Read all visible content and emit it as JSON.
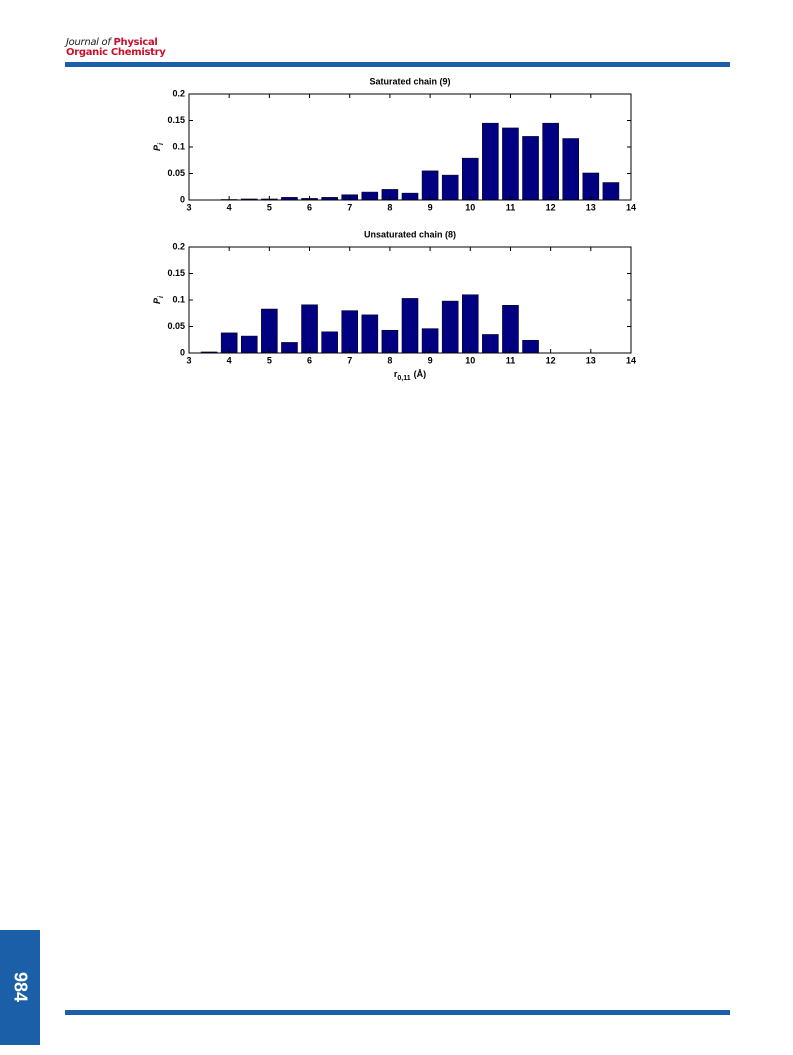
{
  "header": {
    "journal_prefix": "Journal of",
    "journal_highlight": "Physical",
    "journal_line2": "Organic Chemistry"
  },
  "page_number": "984",
  "chart_data": [
    {
      "type": "bar",
      "title": "Saturated chain (9)",
      "color": "#000080",
      "ylabel": "P",
      "ylabel_sub": "i",
      "x": [
        3.5,
        4,
        4.5,
        5,
        5.5,
        6,
        6.5,
        7,
        7.5,
        8,
        8.5,
        9,
        9.5,
        10,
        10.5,
        11,
        11.5,
        12,
        12.5,
        13,
        13.5
      ],
      "values": [
        0,
        0.001,
        0.002,
        0.002,
        0.005,
        0.003,
        0.005,
        0.01,
        0.015,
        0.02,
        0.013,
        0.055,
        0.047,
        0.079,
        0.145,
        0.136,
        0.12,
        0.145,
        0.116,
        0.051,
        0.033
      ],
      "xlim": [
        3,
        14
      ],
      "xticks": [
        3,
        4,
        5,
        6,
        7,
        8,
        9,
        10,
        11,
        12,
        13,
        14
      ],
      "ylim": [
        0,
        0.2
      ],
      "yticks": [
        0,
        0.05,
        0.1,
        0.15,
        0.2
      ]
    },
    {
      "type": "bar",
      "title": "Unsaturated chain (8)",
      "color": "#000080",
      "ylabel": "P",
      "ylabel_sub": "i",
      "xlabel": "r",
      "xlabel_sub": "0,11",
      "xlabel_unit": "(Å)",
      "x": [
        3.5,
        4,
        4.5,
        5,
        5.5,
        6,
        6.5,
        7,
        7.5,
        8,
        8.5,
        9,
        9.5,
        10,
        10.5,
        11,
        11.5,
        12,
        12.5,
        13,
        13.5
      ],
      "values": [
        0.002,
        0.038,
        0.032,
        0.083,
        0.02,
        0.091,
        0.04,
        0.08,
        0.072,
        0.043,
        0.103,
        0.046,
        0.098,
        0.11,
        0.035,
        0.09,
        0.024,
        0,
        0,
        0,
        0
      ],
      "xlim": [
        3,
        14
      ],
      "xticks": [
        3,
        4,
        5,
        6,
        7,
        8,
        9,
        10,
        11,
        12,
        13,
        14
      ],
      "ylim": [
        0,
        0.2
      ],
      "yticks": [
        0,
        0.05,
        0.1,
        0.15,
        0.2
      ]
    }
  ]
}
